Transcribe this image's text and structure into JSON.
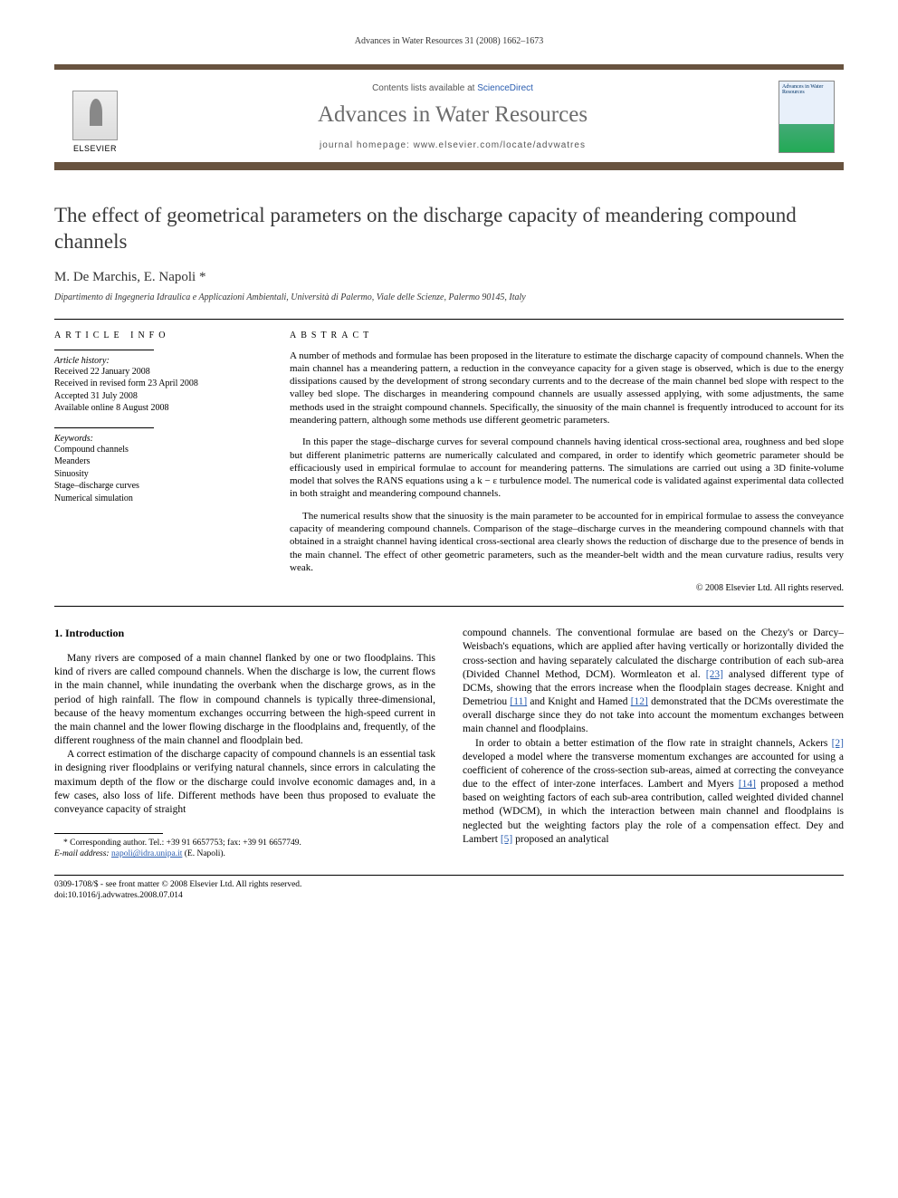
{
  "pageHeader": "Advances in Water Resources 31 (2008) 1662–1673",
  "journalBox": {
    "publisherName": "ELSEVIER",
    "contentsPrefix": "Contents lists available at ",
    "contentsLink": "ScienceDirect",
    "journalTitle": "Advances in Water Resources",
    "homepageLabel": "journal homepage: ",
    "homepageUrl": "www.elsevier.com/locate/advwatres",
    "coverTitle": "Advances in Water Resources"
  },
  "article": {
    "title": "The effect of geometrical parameters on the discharge capacity of meandering compound channels",
    "authors": "M. De Marchis, E. Napoli *",
    "affiliation": "Dipartimento di Ingegneria Idraulica e Applicazioni Ambientali, Università di Palermo, Viale delle Scienze, Palermo 90145, Italy"
  },
  "infoLabel": "article info",
  "abstractLabel": "abstract",
  "history": {
    "label": "Article history:",
    "received": "Received 22 January 2008",
    "revised": "Received in revised form 23 April 2008",
    "accepted": "Accepted 31 July 2008",
    "online": "Available online 8 August 2008"
  },
  "keywordsLabel": "Keywords:",
  "keywords": [
    "Compound channels",
    "Meanders",
    "Sinuosity",
    "Stage–discharge curves",
    "Numerical simulation"
  ],
  "abstract": {
    "p1": "A number of methods and formulae has been proposed in the literature to estimate the discharge capacity of compound channels. When the main channel has a meandering pattern, a reduction in the conveyance capacity for a given stage is observed, which is due to the energy dissipations caused by the development of strong secondary currents and to the decrease of the main channel bed slope with respect to the valley bed slope. The discharges in meandering compound channels are usually assessed applying, with some adjustments, the same methods used in the straight compound channels. Specifically, the sinuosity of the main channel is frequently introduced to account for its meandering pattern, although some methods use different geometric parameters.",
    "p2": "In this paper the stage–discharge curves for several compound channels having identical cross-sectional area, roughness and bed slope but different planimetric patterns are numerically calculated and compared, in order to identify which geometric parameter should be efficaciously used in empirical formulae to account for meandering patterns. The simulations are carried out using a 3D finite-volume model that solves the RANS equations using a k − ε turbulence model. The numerical code is validated against experimental data collected in both straight and meandering compound channels.",
    "p3": "The numerical results show that the sinuosity is the main parameter to be accounted for in empirical formulae to assess the conveyance capacity of meandering compound channels. Comparison of the stage–discharge curves in the meandering compound channels with that obtained in a straight channel having identical cross-sectional area clearly shows the reduction of discharge due to the presence of bends in the main channel. The effect of other geometric parameters, such as the meander-belt width and the mean curvature radius, results very weak.",
    "copyright": "© 2008 Elsevier Ltd. All rights reserved."
  },
  "introHeading": "1. Introduction",
  "body": {
    "c1p1": "Many rivers are composed of a main channel flanked by one or two floodplains. This kind of rivers are called compound channels. When the discharge is low, the current flows in the main channel, while inundating the overbank when the discharge grows, as in the period of high rainfall. The flow in compound channels is typically three-dimensional, because of the heavy momentum exchanges occurring between the high-speed current in the main channel and the lower flowing discharge in the floodplains and, frequently, of the different roughness of the main channel and floodplain bed.",
    "c1p2": "A correct estimation of the discharge capacity of compound channels is an essential task in designing river floodplains or verifying natural channels, since errors in calculating the maximum depth of the flow or the discharge could involve economic damages and, in a few cases, also loss of life. Different methods have been thus proposed to evaluate the conveyance capacity of straight",
    "c2p1a": "compound channels. The conventional formulae are based on the Chezy's or Darcy–Weisbach's equations, which are applied after having vertically or horizontally divided the cross-section and having separately calculated the discharge contribution of each sub-area (Divided Channel Method, DCM). Wormleaton et al. ",
    "ref23": "[23]",
    "c2p1b": " analysed different type of DCMs, showing that the errors increase when the floodplain stages decrease. Knight and Demetriou ",
    "ref11": "[11]",
    "c2p1c": " and Knight and Hamed ",
    "ref12": "[12]",
    "c2p1d": " demonstrated that the DCMs overestimate the overall discharge since they do not take into account the momentum exchanges between main channel and floodplains.",
    "c2p2a": "In order to obtain a better estimation of the flow rate in straight channels, Ackers ",
    "ref2": "[2]",
    "c2p2b": " developed a model where the transverse momentum exchanges are accounted for using a coefficient of coherence of the cross-section sub-areas, aimed at correcting the conveyance due to the effect of inter-zone interfaces. Lambert and Myers ",
    "ref14": "[14]",
    "c2p2c": " proposed a method based on weighting factors of each sub-area contribution, called weighted divided channel method (WDCM), in which the interaction between main channel and floodplains is neglected but the weighting factors play the role of a compensation effect. Dey and Lambert ",
    "ref5": "[5]",
    "c2p2d": " proposed an analytical"
  },
  "footnote": {
    "corr": "* Corresponding author. Tel.: +39 91 6657753; fax: +39 91 6657749.",
    "emailLabel": "E-mail address: ",
    "email": "napoli@idra.unipa.it",
    "emailSuffix": " (E. Napoli)."
  },
  "footer": {
    "line1": "0309-1708/$ - see front matter © 2008 Elsevier Ltd. All rights reserved.",
    "line2": "doi:10.1016/j.advwatres.2008.07.014"
  }
}
